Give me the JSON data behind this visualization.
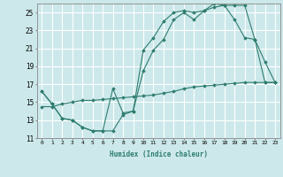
{
  "xlabel": "Humidex (Indice chaleur)",
  "bg_color": "#cce8ea",
  "grid_color": "#ffffff",
  "line_color": "#2e7d6e",
  "xlim": [
    -0.5,
    23.5
  ],
  "ylim": [
    11,
    26
  ],
  "xticks": [
    0,
    1,
    2,
    3,
    4,
    5,
    6,
    7,
    8,
    9,
    10,
    11,
    12,
    13,
    14,
    15,
    16,
    17,
    18,
    19,
    20,
    21,
    22,
    23
  ],
  "yticks": [
    11,
    13,
    15,
    17,
    19,
    21,
    23,
    25
  ],
  "series1_x": [
    0,
    1,
    2,
    3,
    4,
    5,
    6,
    7,
    8,
    9,
    10,
    11,
    12,
    13,
    14,
    15,
    16,
    17,
    18,
    19,
    20,
    21,
    22,
    23
  ],
  "series1_y": [
    16.2,
    14.8,
    13.2,
    13.0,
    12.2,
    11.8,
    11.8,
    11.8,
    13.6,
    14.0,
    20.8,
    22.2,
    24.0,
    25.0,
    25.2,
    25.0,
    25.2,
    26.0,
    25.8,
    25.8,
    25.8,
    22.0,
    19.5,
    17.2
  ],
  "series2_x": [
    0,
    1,
    2,
    3,
    4,
    5,
    6,
    7,
    8,
    9,
    10,
    11,
    12,
    13,
    14,
    15,
    16,
    17,
    18,
    19,
    20,
    21,
    22,
    23
  ],
  "series2_y": [
    16.2,
    14.8,
    13.2,
    13.0,
    12.2,
    11.8,
    11.8,
    16.5,
    13.8,
    14.0,
    18.5,
    20.8,
    22.0,
    24.2,
    25.0,
    24.2,
    25.2,
    25.6,
    25.8,
    24.2,
    22.2,
    22.0,
    17.2,
    17.2
  ],
  "series3_x": [
    0,
    1,
    2,
    3,
    4,
    5,
    6,
    7,
    8,
    9,
    10,
    11,
    12,
    13,
    14,
    15,
    16,
    17,
    18,
    19,
    20,
    21,
    22,
    23
  ],
  "series3_y": [
    14.5,
    14.5,
    14.8,
    15.0,
    15.2,
    15.2,
    15.3,
    15.4,
    15.5,
    15.6,
    15.7,
    15.8,
    16.0,
    16.2,
    16.5,
    16.7,
    16.8,
    16.9,
    17.0,
    17.1,
    17.2,
    17.2,
    17.2,
    17.2
  ]
}
